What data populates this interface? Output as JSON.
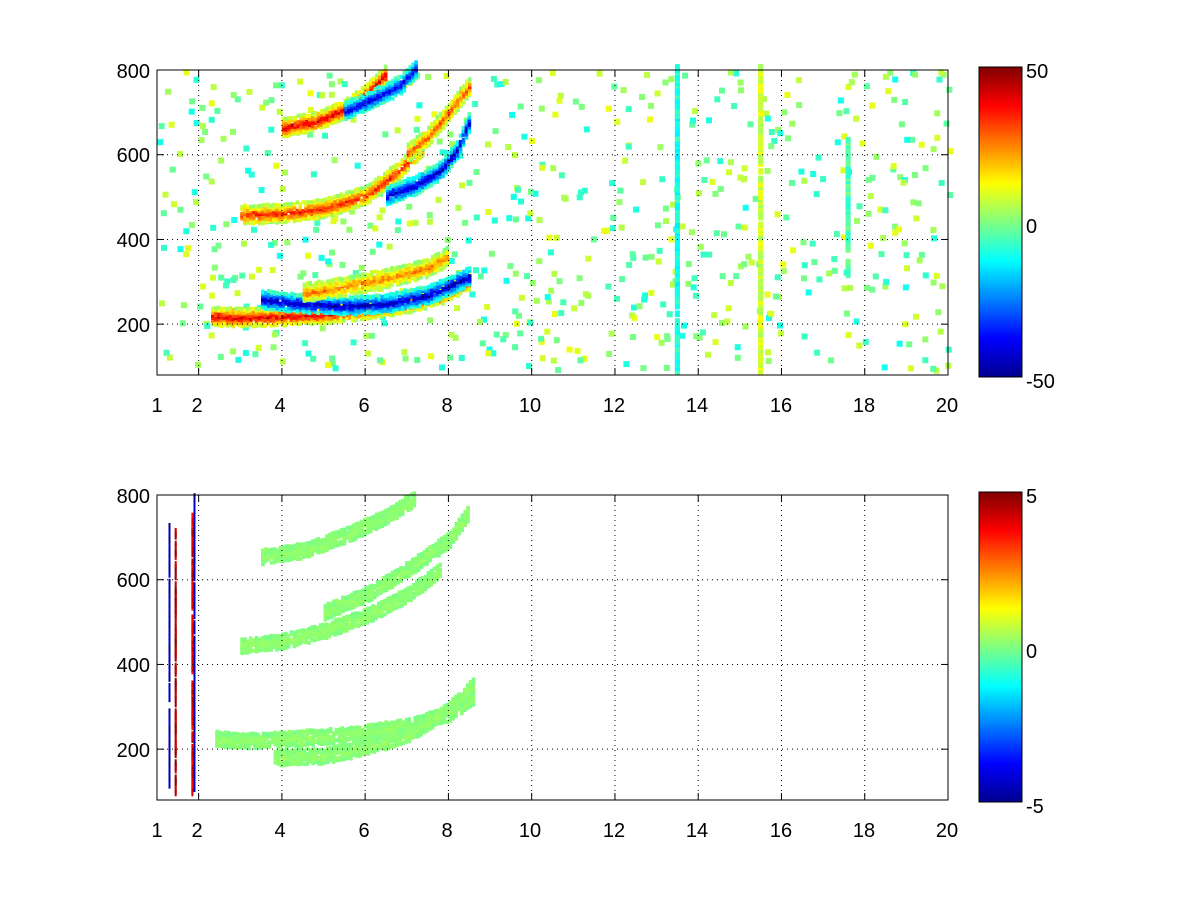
{
  "chart_data": [
    {
      "type": "heatmap",
      "title": "",
      "xlabel": "",
      "ylabel": "",
      "xlim": [
        1,
        20
      ],
      "ylim": [
        80,
        800
      ],
      "x_ticks": [
        "1",
        "2",
        "4",
        "6",
        "8",
        "10",
        "12",
        "14",
        "16",
        "18",
        "20"
      ],
      "x_tick_values": [
        1,
        2,
        4,
        6,
        8,
        10,
        12,
        14,
        16,
        18,
        20
      ],
      "y_ticks": [
        "200",
        "400",
        "600",
        "800"
      ],
      "y_tick_values": [
        200,
        400,
        600,
        800
      ],
      "grid": true,
      "colormap": "jet",
      "colorbar": {
        "min": -50,
        "max": 50,
        "ticks": [
          "50",
          "0",
          "-50"
        ],
        "tick_values": [
          50,
          0,
          -50
        ]
      },
      "features": [
        {
          "kind": "band",
          "x": [
            2.3,
            3.0,
            4.0,
            5.0,
            6.0,
            7.0,
            7.8,
            8.5
          ],
          "y": [
            215,
            212,
            215,
            220,
            230,
            245,
            265,
            300
          ],
          "value": 40
        },
        {
          "kind": "band",
          "x": [
            3.5,
            4.5,
            5.5,
            6.5,
            7.5,
            8.5
          ],
          "y": [
            255,
            245,
            240,
            245,
            265,
            310
          ],
          "value": -45
        },
        {
          "kind": "band",
          "x": [
            4.5,
            5.5,
            6.5,
            7.5,
            8.0
          ],
          "y": [
            270,
            285,
            305,
            330,
            360
          ],
          "value": 25
        },
        {
          "kind": "band",
          "x": [
            3.0,
            4.0,
            5.0,
            6.0,
            6.8,
            7.4
          ],
          "y": [
            455,
            458,
            470,
            500,
            560,
            620
          ],
          "value": 35
        },
        {
          "kind": "band",
          "x": [
            6.5,
            7.2,
            7.8,
            8.2,
            8.5
          ],
          "y": [
            500,
            525,
            560,
            610,
            680
          ],
          "value": -45
        },
        {
          "kind": "band",
          "x": [
            4.0,
            4.8,
            5.5,
            6.0,
            6.5
          ],
          "y": [
            660,
            675,
            705,
            740,
            790
          ],
          "value": 40
        },
        {
          "kind": "band",
          "x": [
            5.5,
            6.2,
            6.8,
            7.2
          ],
          "y": [
            700,
            730,
            760,
            800
          ],
          "value": -40
        },
        {
          "kind": "band",
          "x": [
            7.0,
            7.5,
            8.0,
            8.5
          ],
          "y": [
            600,
            640,
            700,
            760
          ],
          "value": 30
        },
        {
          "kind": "column",
          "x": 13.5,
          "y": [
            80,
            800
          ],
          "value": -10
        },
        {
          "kind": "column",
          "x": 15.5,
          "y": [
            80,
            800
          ],
          "value": 8
        },
        {
          "kind": "column",
          "x": 17.6,
          "y": [
            310,
            630
          ],
          "value": -5
        }
      ]
    },
    {
      "type": "heatmap",
      "title": "",
      "xlabel": "",
      "ylabel": "",
      "xlim": [
        1,
        20
      ],
      "ylim": [
        80,
        800
      ],
      "x_ticks": [
        "1",
        "2",
        "4",
        "6",
        "8",
        "10",
        "12",
        "14",
        "16",
        "18",
        "20"
      ],
      "x_tick_values": [
        1,
        2,
        4,
        6,
        8,
        10,
        12,
        14,
        16,
        18,
        20
      ],
      "y_ticks": [
        "200",
        "400",
        "600",
        "800"
      ],
      "y_tick_values": [
        200,
        400,
        600,
        800
      ],
      "grid": true,
      "colormap": "jet",
      "colorbar": {
        "min": -5,
        "max": 5,
        "ticks": [
          "5",
          "0",
          "-5"
        ],
        "tick_values": [
          5,
          0,
          -5
        ]
      },
      "features": [
        {
          "kind": "band",
          "x": [
            2.4,
            3.0,
            4.0,
            5.0,
            6.0,
            7.0,
            8.0,
            8.6
          ],
          "y": [
            220,
            215,
            220,
            225,
            235,
            250,
            280,
            320
          ],
          "value": 0.2
        },
        {
          "kind": "band",
          "x": [
            3.8,
            5.0,
            6.0,
            7.0,
            8.0,
            8.6
          ],
          "y": [
            175,
            180,
            200,
            230,
            290,
            350
          ],
          "value": 0.2
        },
        {
          "kind": "band",
          "x": [
            3.0,
            4.0,
            5.0,
            6.0,
            7.0,
            7.8
          ],
          "y": [
            440,
            450,
            475,
            510,
            560,
            620
          ],
          "value": 0.2
        },
        {
          "kind": "band",
          "x": [
            5.0,
            6.0,
            7.0,
            8.0,
            8.5
          ],
          "y": [
            520,
            560,
            620,
            690,
            760
          ],
          "value": 0.2
        },
        {
          "kind": "band",
          "x": [
            3.5,
            4.5,
            5.5,
            6.5,
            7.2
          ],
          "y": [
            650,
            665,
            700,
            745,
            790
          ],
          "value": 0.2
        },
        {
          "kind": "column",
          "x": 1.3,
          "y": [
            90,
            720
          ],
          "value": -4.5
        },
        {
          "kind": "column",
          "x": 1.45,
          "y": [
            90,
            710
          ],
          "value": 4.5
        },
        {
          "kind": "column",
          "x": 1.9,
          "y": [
            100,
            790
          ],
          "value": -4.5
        },
        {
          "kind": "column",
          "x": 1.85,
          "y": [
            90,
            760
          ],
          "value": 4.0
        }
      ]
    }
  ]
}
